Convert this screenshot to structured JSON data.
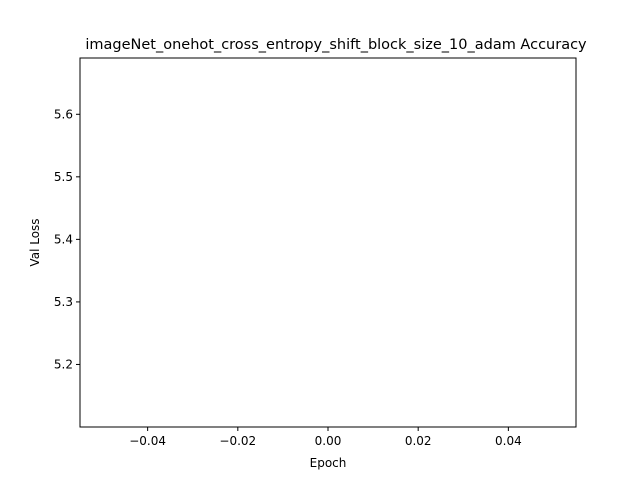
{
  "chart_data": {
    "type": "line",
    "title": "imageNet_onehot_cross_entropy_shift_block_size_10_adam Accuracy",
    "xlabel": "Epoch",
    "ylabel": "Val Loss",
    "xlim": [
      -0.055,
      0.055
    ],
    "ylim": [
      5.1,
      5.69
    ],
    "x_ticks": [
      -0.04,
      -0.02,
      0.0,
      0.02,
      0.04
    ],
    "x_tick_labels": [
      "−0.04",
      "−0.02",
      "0.00",
      "0.02",
      "0.04"
    ],
    "y_ticks": [
      5.2,
      5.3,
      5.4,
      5.5,
      5.6
    ],
    "y_tick_labels": [
      "5.2",
      "5.3",
      "5.4",
      "5.5",
      "5.6"
    ],
    "series": [
      {
        "x": [],
        "y": []
      }
    ],
    "grid": false,
    "legend": "none"
  }
}
